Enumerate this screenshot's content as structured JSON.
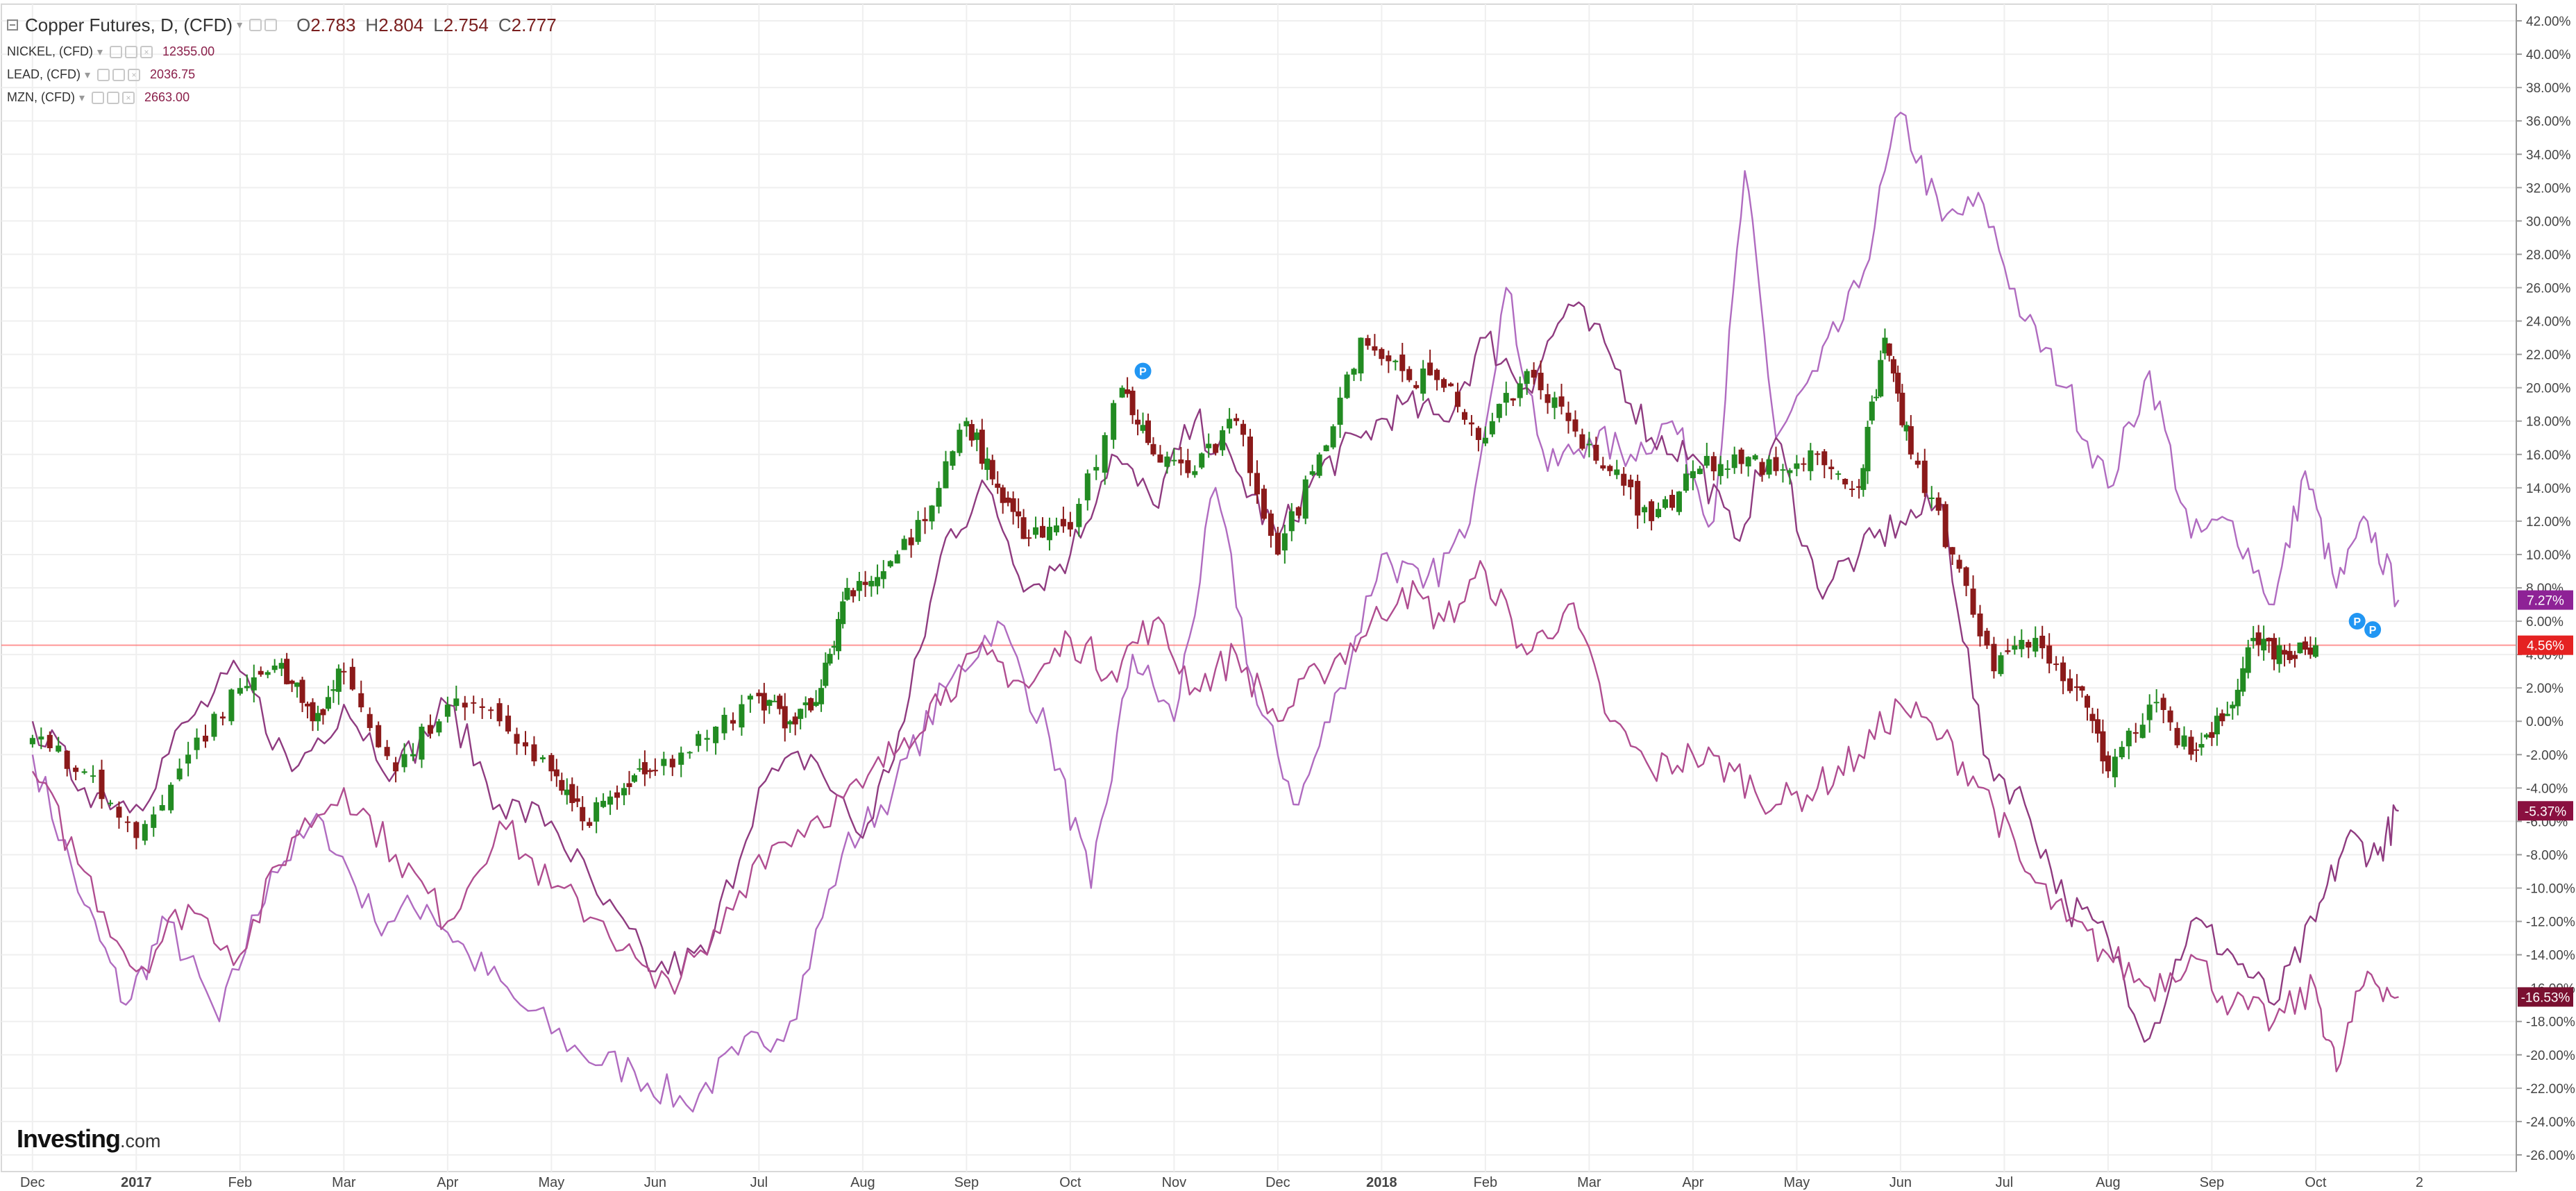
{
  "header": {
    "symbol": "Copper Futures, D, (CFD)",
    "ohlc": [
      {
        "label": "O",
        "value": "2.783"
      },
      {
        "label": "H",
        "value": "2.804"
      },
      {
        "label": "L",
        "value": "2.754"
      },
      {
        "label": "C",
        "value": "2.777"
      }
    ],
    "comparisons": [
      {
        "name": "NICKEL, (CFD)",
        "value": "12355.00"
      },
      {
        "name": "LEAD, (CFD)",
        "value": "2036.75"
      },
      {
        "name": "MZN, (CFD)",
        "value": "2663.00"
      }
    ]
  },
  "logo": {
    "main": "Investing",
    "suffix": ".com"
  },
  "colors": {
    "background": "#ffffff",
    "grid": "#efefef",
    "up_candle": "#228b22",
    "down_candle": "#8b1a1a",
    "nickel_line": "#b06bc0",
    "lead_line": "#8f3b80",
    "mzn_line": "#b04d90",
    "baseline": "#ff6b6b",
    "event_marker": "#2196f3",
    "copper_badge": "#e52222",
    "nickel_badge": "#8e2296",
    "lead_badge": "#8a1040",
    "mzn_badge": "#7a1030"
  },
  "chart_data": {
    "type": "line",
    "title": "Copper Futures, D, (CFD)",
    "description_note": "",
    "x_axis": {
      "ticks": [
        "Dec",
        "2017",
        "Feb",
        "Mar",
        "Apr",
        "May",
        "Jun",
        "Jul",
        "Aug",
        "Sep",
        "Oct",
        "Nov",
        "Dec",
        "2018",
        "Feb",
        "Mar",
        "Apr",
        "May",
        "Jun",
        "Jul",
        "Aug",
        "Sep",
        "Oct",
        "2"
      ],
      "bold_ticks": [
        "2017",
        "2018"
      ]
    },
    "y_axis": {
      "unit": "%",
      "range": [
        -27,
        43
      ],
      "ticks": [
        "42.00%",
        "40.00%",
        "38.00%",
        "36.00%",
        "34.00%",
        "32.00%",
        "30.00%",
        "28.00%",
        "26.00%",
        "24.00%",
        "22.00%",
        "20.00%",
        "18.00%",
        "16.00%",
        "14.00%",
        "12.00%",
        "10.00%",
        "8.00%",
        "6.00%",
        "4.00%",
        "2.00%",
        "0.00%",
        "-2.00%",
        "-4.00%",
        "-6.00%",
        "-8.00%",
        "-10.00%",
        "-12.00%",
        "-14.00%",
        "-16.00%",
        "-18.00%",
        "-20.00%",
        "-22.00%",
        "-24.00%",
        "-26.00%"
      ]
    },
    "grid": true,
    "baseline_value": 4.56,
    "badges": [
      {
        "series": "NICKEL, (CFD)",
        "label": "7.27%",
        "value": 7.27
      },
      {
        "series": "Copper Futures, D, (CFD)",
        "label": "4.56%",
        "value": 4.56
      },
      {
        "series": "LEAD, (CFD)",
        "label": "-5.37%",
        "value": -5.37
      },
      {
        "series": "MZN, (CFD)",
        "label": "-16.53%",
        "value": -16.53
      }
    ],
    "copper_candles_approx": [
      {
        "t": 0.0,
        "c": -1.0
      },
      {
        "t": 0.5,
        "c": -3.0
      },
      {
        "t": 1.0,
        "c": -7.0
      },
      {
        "t": 1.5,
        "c": -2.0
      },
      {
        "t": 2.0,
        "c": 2.0
      },
      {
        "t": 2.4,
        "c": 3.5
      },
      {
        "t": 2.7,
        "c": 0.0
      },
      {
        "t": 3.0,
        "c": 3.0
      },
      {
        "t": 3.5,
        "c": -3.0
      },
      {
        "t": 4.0,
        "c": 1.0
      },
      {
        "t": 4.5,
        "c": 0.0
      },
      {
        "t": 5.0,
        "c": -3.0
      },
      {
        "t": 5.3,
        "c": -6.0
      },
      {
        "t": 5.7,
        "c": -4.0
      },
      {
        "t": 6.0,
        "c": -3.0
      },
      {
        "t": 6.5,
        "c": -1.0
      },
      {
        "t": 7.0,
        "c": 1.5
      },
      {
        "t": 7.3,
        "c": 0.0
      },
      {
        "t": 7.6,
        "c": 2.0
      },
      {
        "t": 7.85,
        "c": 8.0
      },
      {
        "t": 8.2,
        "c": 9.0
      },
      {
        "t": 8.6,
        "c": 12.0
      },
      {
        "t": 9.0,
        "c": 18.0
      },
      {
        "t": 9.3,
        "c": 14.0
      },
      {
        "t": 9.6,
        "c": 11.0
      },
      {
        "t": 10.0,
        "c": 11.5
      },
      {
        "t": 10.5,
        "c": 20.0
      },
      {
        "t": 10.8,
        "c": 16.0
      },
      {
        "t": 11.2,
        "c": 15.0
      },
      {
        "t": 11.6,
        "c": 18.0
      },
      {
        "t": 12.0,
        "c": 10.0
      },
      {
        "t": 12.4,
        "c": 16.0
      },
      {
        "t": 12.8,
        "c": 23.0
      },
      {
        "t": 13.2,
        "c": 21.0
      },
      {
        "t": 13.6,
        "c": 20.0
      },
      {
        "t": 14.0,
        "c": 17.0
      },
      {
        "t": 14.4,
        "c": 21.0
      },
      {
        "t": 14.8,
        "c": 18.0
      },
      {
        "t": 15.2,
        "c": 15.0
      },
      {
        "t": 15.6,
        "c": 12.0
      },
      {
        "t": 16.0,
        "c": 15.0
      },
      {
        "t": 16.4,
        "c": 16.0
      },
      {
        "t": 16.8,
        "c": 15.0
      },
      {
        "t": 17.2,
        "c": 16.0
      },
      {
        "t": 17.6,
        "c": 14.0
      },
      {
        "t": 17.85,
        "c": 23.0
      },
      {
        "t": 18.1,
        "c": 16.0
      },
      {
        "t": 18.5,
        "c": 10.0
      },
      {
        "t": 18.9,
        "c": 3.0
      },
      {
        "t": 19.3,
        "c": 5.0
      },
      {
        "t": 19.7,
        "c": 2.0
      },
      {
        "t": 20.0,
        "c": -3.0
      },
      {
        "t": 20.4,
        "c": 1.0
      },
      {
        "t": 20.8,
        "c": -2.0
      },
      {
        "t": 21.1,
        "c": 0.0
      },
      {
        "t": 21.4,
        "c": 5.0
      },
      {
        "t": 21.7,
        "c": 4.0
      },
      {
        "t": 22.0,
        "c": 4.56
      }
    ],
    "series": [
      {
        "name": "NICKEL, (CFD)",
        "points": [
          {
            "t": 0.0,
            "v": -2.0
          },
          {
            "t": 0.5,
            "v": -11.0
          },
          {
            "t": 0.9,
            "v": -17.0
          },
          {
            "t": 1.3,
            "v": -12.0
          },
          {
            "t": 1.8,
            "v": -18.0
          },
          {
            "t": 2.3,
            "v": -9.0
          },
          {
            "t": 2.8,
            "v": -6.0
          },
          {
            "t": 3.3,
            "v": -12.0
          },
          {
            "t": 3.8,
            "v": -11.0
          },
          {
            "t": 4.2,
            "v": -14.0
          },
          {
            "t": 4.7,
            "v": -17.0
          },
          {
            "t": 5.3,
            "v": -20.0
          },
          {
            "t": 5.8,
            "v": -21.0
          },
          {
            "t": 6.3,
            "v": -23.0
          },
          {
            "t": 6.8,
            "v": -20.0
          },
          {
            "t": 7.3,
            "v": -18.0
          },
          {
            "t": 7.8,
            "v": -8.0
          },
          {
            "t": 8.3,
            "v": -4.0
          },
          {
            "t": 8.8,
            "v": 2.0
          },
          {
            "t": 9.3,
            "v": 6.0
          },
          {
            "t": 9.8,
            "v": -1.0
          },
          {
            "t": 10.2,
            "v": -10.0
          },
          {
            "t": 10.6,
            "v": 4.0
          },
          {
            "t": 11.0,
            "v": 0.0
          },
          {
            "t": 11.4,
            "v": 14.0
          },
          {
            "t": 11.8,
            "v": 1.0
          },
          {
            "t": 12.2,
            "v": -5.0
          },
          {
            "t": 12.6,
            "v": 2.0
          },
          {
            "t": 13.0,
            "v": 10.0
          },
          {
            "t": 13.4,
            "v": 8.0
          },
          {
            "t": 13.8,
            "v": 11.0
          },
          {
            "t": 14.2,
            "v": 26.0
          },
          {
            "t": 14.6,
            "v": 15.0
          },
          {
            "t": 15.0,
            "v": 17.0
          },
          {
            "t": 15.4,
            "v": 16.0
          },
          {
            "t": 15.8,
            "v": 18.0
          },
          {
            "t": 16.2,
            "v": 12.0
          },
          {
            "t": 16.5,
            "v": 33.0
          },
          {
            "t": 16.8,
            "v": 17.0
          },
          {
            "t": 17.2,
            "v": 21.0
          },
          {
            "t": 17.6,
            "v": 26.0
          },
          {
            "t": 18.0,
            "v": 36.5
          },
          {
            "t": 18.4,
            "v": 30.0
          },
          {
            "t": 18.8,
            "v": 31.0
          },
          {
            "t": 19.2,
            "v": 24.0
          },
          {
            "t": 19.6,
            "v": 20.0
          },
          {
            "t": 20.0,
            "v": 14.0
          },
          {
            "t": 20.4,
            "v": 21.0
          },
          {
            "t": 20.8,
            "v": 11.0
          },
          {
            "t": 21.2,
            "v": 12.0
          },
          {
            "t": 21.6,
            "v": 7.0
          },
          {
            "t": 21.9,
            "v": 15.0
          },
          {
            "t": 22.2,
            "v": 8.0
          },
          {
            "t": 22.5,
            "v": 12.0
          },
          {
            "t": 22.8,
            "v": 7.27
          }
        ]
      },
      {
        "name": "LEAD, (CFD)",
        "points": [
          {
            "t": 0.0,
            "v": 0.0
          },
          {
            "t": 0.5,
            "v": -4.0
          },
          {
            "t": 1.0,
            "v": -5.0
          },
          {
            "t": 1.5,
            "v": 0.0
          },
          {
            "t": 2.0,
            "v": 3.0
          },
          {
            "t": 2.5,
            "v": -3.0
          },
          {
            "t": 3.0,
            "v": 1.0
          },
          {
            "t": 3.5,
            "v": -3.0
          },
          {
            "t": 4.0,
            "v": 1.0
          },
          {
            "t": 4.5,
            "v": -5.0
          },
          {
            "t": 5.0,
            "v": -6.0
          },
          {
            "t": 5.5,
            "v": -11.0
          },
          {
            "t": 6.0,
            "v": -15.0
          },
          {
            "t": 6.5,
            "v": -14.0
          },
          {
            "t": 7.0,
            "v": -4.0
          },
          {
            "t": 7.5,
            "v": -2.0
          },
          {
            "t": 8.0,
            "v": -7.0
          },
          {
            "t": 8.4,
            "v": 0.0
          },
          {
            "t": 8.8,
            "v": 11.0
          },
          {
            "t": 9.2,
            "v": 14.0
          },
          {
            "t": 9.6,
            "v": 8.0
          },
          {
            "t": 10.0,
            "v": 10.0
          },
          {
            "t": 10.4,
            "v": 16.0
          },
          {
            "t": 10.8,
            "v": 13.0
          },
          {
            "t": 11.2,
            "v": 18.0
          },
          {
            "t": 11.6,
            "v": 15.0
          },
          {
            "t": 12.0,
            "v": 11.0
          },
          {
            "t": 12.4,
            "v": 15.0
          },
          {
            "t": 12.8,
            "v": 17.0
          },
          {
            "t": 13.2,
            "v": 19.0
          },
          {
            "t": 13.6,
            "v": 18.0
          },
          {
            "t": 14.0,
            "v": 23.0
          },
          {
            "t": 14.4,
            "v": 20.0
          },
          {
            "t": 14.8,
            "v": 25.0
          },
          {
            "t": 15.2,
            "v": 22.0
          },
          {
            "t": 15.6,
            "v": 17.0
          },
          {
            "t": 16.0,
            "v": 16.0
          },
          {
            "t": 16.4,
            "v": 11.0
          },
          {
            "t": 16.8,
            "v": 17.0
          },
          {
            "t": 17.2,
            "v": 8.0
          },
          {
            "t": 17.6,
            "v": 10.0
          },
          {
            "t": 18.0,
            "v": 12.0
          },
          {
            "t": 18.4,
            "v": 13.0
          },
          {
            "t": 18.8,
            "v": -2.0
          },
          {
            "t": 19.2,
            "v": -5.0
          },
          {
            "t": 19.6,
            "v": -11.0
          },
          {
            "t": 20.0,
            "v": -13.0
          },
          {
            "t": 20.4,
            "v": -19.0
          },
          {
            "t": 20.8,
            "v": -12.0
          },
          {
            "t": 21.2,
            "v": -14.0
          },
          {
            "t": 21.6,
            "v": -17.0
          },
          {
            "t": 22.0,
            "v": -12.0
          },
          {
            "t": 22.3,
            "v": -7.0
          },
          {
            "t": 22.6,
            "v": -8.0
          },
          {
            "t": 22.8,
            "v": -5.37
          }
        ]
      },
      {
        "name": "MZN, (CFD)",
        "points": [
          {
            "t": 0.0,
            "v": -3.0
          },
          {
            "t": 0.5,
            "v": -9.0
          },
          {
            "t": 1.0,
            "v": -15.0
          },
          {
            "t": 1.5,
            "v": -11.0
          },
          {
            "t": 2.0,
            "v": -14.0
          },
          {
            "t": 2.5,
            "v": -7.0
          },
          {
            "t": 3.0,
            "v": -4.0
          },
          {
            "t": 3.5,
            "v": -8.0
          },
          {
            "t": 4.0,
            "v": -12.0
          },
          {
            "t": 4.5,
            "v": -6.0
          },
          {
            "t": 5.0,
            "v": -10.0
          },
          {
            "t": 5.5,
            "v": -12.0
          },
          {
            "t": 6.0,
            "v": -16.0
          },
          {
            "t": 6.5,
            "v": -14.0
          },
          {
            "t": 7.0,
            "v": -8.0
          },
          {
            "t": 7.5,
            "v": -6.0
          },
          {
            "t": 8.0,
            "v": -4.0
          },
          {
            "t": 8.4,
            "v": -1.0
          },
          {
            "t": 8.8,
            "v": 2.0
          },
          {
            "t": 9.2,
            "v": 4.0
          },
          {
            "t": 9.6,
            "v": 2.0
          },
          {
            "t": 10.0,
            "v": 5.0
          },
          {
            "t": 10.4,
            "v": 3.0
          },
          {
            "t": 10.8,
            "v": 6.0
          },
          {
            "t": 11.2,
            "v": 2.0
          },
          {
            "t": 11.6,
            "v": 4.0
          },
          {
            "t": 12.0,
            "v": 0.0
          },
          {
            "t": 12.4,
            "v": 3.0
          },
          {
            "t": 12.8,
            "v": 5.0
          },
          {
            "t": 13.2,
            "v": 8.0
          },
          {
            "t": 13.6,
            "v": 6.0
          },
          {
            "t": 14.0,
            "v": 9.0
          },
          {
            "t": 14.4,
            "v": 4.0
          },
          {
            "t": 14.8,
            "v": 7.0
          },
          {
            "t": 15.2,
            "v": 0.0
          },
          {
            "t": 15.6,
            "v": -3.0
          },
          {
            "t": 16.0,
            "v": -2.0
          },
          {
            "t": 16.4,
            "v": -3.0
          },
          {
            "t": 16.8,
            "v": -5.0
          },
          {
            "t": 17.2,
            "v": -4.0
          },
          {
            "t": 17.6,
            "v": -2.0
          },
          {
            "t": 18.0,
            "v": 1.0
          },
          {
            "t": 18.4,
            "v": -1.0
          },
          {
            "t": 18.8,
            "v": -4.0
          },
          {
            "t": 19.2,
            "v": -9.0
          },
          {
            "t": 19.6,
            "v": -12.0
          },
          {
            "t": 20.0,
            "v": -14.0
          },
          {
            "t": 20.4,
            "v": -16.0
          },
          {
            "t": 20.8,
            "v": -14.0
          },
          {
            "t": 21.2,
            "v": -17.0
          },
          {
            "t": 21.6,
            "v": -18.0
          },
          {
            "t": 22.0,
            "v": -16.0
          },
          {
            "t": 22.2,
            "v": -21.0
          },
          {
            "t": 22.5,
            "v": -15.0
          },
          {
            "t": 22.8,
            "v": -16.53
          }
        ]
      }
    ],
    "event_markers": [
      {
        "label": "P",
        "t": 10.7,
        "v": 21.0
      },
      {
        "label": "P",
        "t": 22.4,
        "v": 6.0
      },
      {
        "label": "P",
        "t": 22.55,
        "v": 5.5
      }
    ]
  }
}
